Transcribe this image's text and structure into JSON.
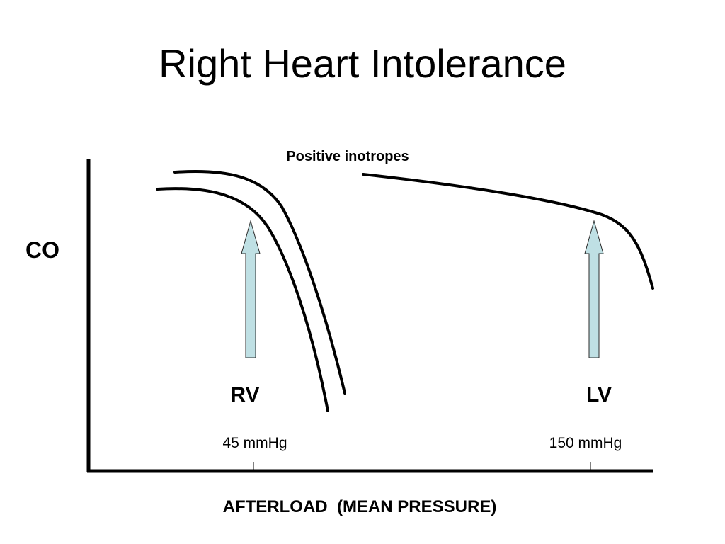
{
  "title": "Right Heart Intolerance",
  "annotation": "Positive inotropes",
  "y_axis_label": "CO",
  "x_axis_label": "AFTERLOAD  (MEAN PRESSURE)",
  "ventricles": [
    {
      "label": "RV",
      "pressure_label": "45 mmHg"
    },
    {
      "label": "LV",
      "pressure_label": "150 mmHg"
    }
  ],
  "colors": {
    "curve": "#000000",
    "axis": "#000000",
    "arrow_fill": "#bfe0e4",
    "arrow_stroke": "#2b2b2b"
  }
}
